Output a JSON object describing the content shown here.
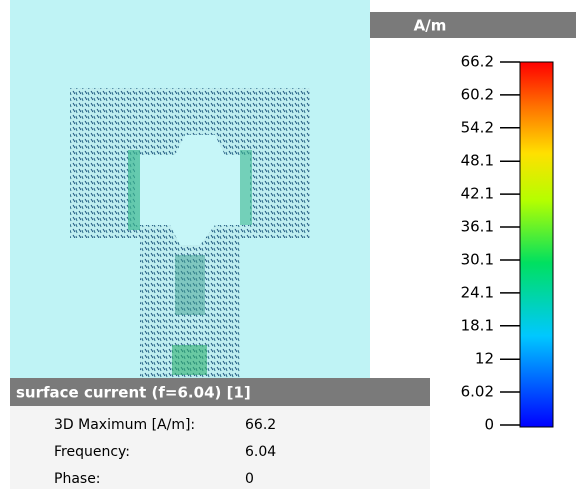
{
  "colorbar": {
    "title": "A/m",
    "range": [
      0,
      66.2
    ],
    "ticks": [
      66.2,
      60.2,
      54.2,
      48.1,
      42.1,
      36.1,
      30.1,
      24.1,
      18.1,
      12,
      6.02,
      0
    ]
  },
  "info": {
    "title": "surface current (f=6.04) [1]",
    "rows": [
      [
        "3D Maximum [A/m]:",
        66.2
      ],
      [
        "Frequency:",
        6.04
      ],
      [
        "Phase:",
        0
      ]
    ]
  }
}
